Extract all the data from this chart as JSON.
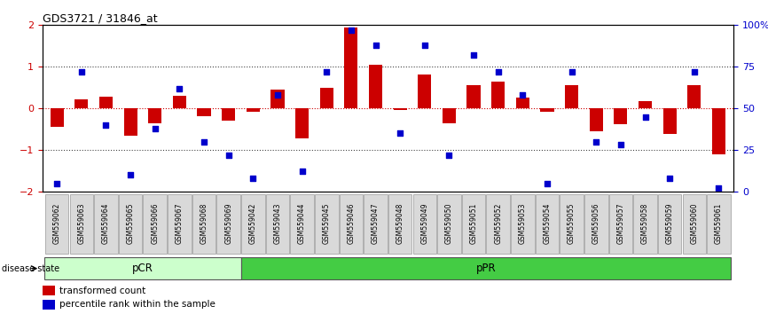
{
  "title": "GDS3721 / 31846_at",
  "samples": [
    "GSM559062",
    "GSM559063",
    "GSM559064",
    "GSM559065",
    "GSM559066",
    "GSM559067",
    "GSM559068",
    "GSM559069",
    "GSM559042",
    "GSM559043",
    "GSM559044",
    "GSM559045",
    "GSM559046",
    "GSM559047",
    "GSM559048",
    "GSM559049",
    "GSM559050",
    "GSM559051",
    "GSM559052",
    "GSM559053",
    "GSM559054",
    "GSM559055",
    "GSM559056",
    "GSM559057",
    "GSM559058",
    "GSM559059",
    "GSM559060",
    "GSM559061"
  ],
  "transformed_count": [
    -0.45,
    0.22,
    0.28,
    -0.65,
    -0.35,
    0.3,
    -0.18,
    -0.3,
    -0.08,
    0.45,
    -0.72,
    0.5,
    1.95,
    1.05,
    -0.05,
    0.82,
    -0.35,
    0.55,
    0.65,
    0.25,
    -0.08,
    0.55,
    -0.55,
    -0.38,
    0.18,
    -0.62,
    0.55,
    -1.1
  ],
  "percentile_rank": [
    5,
    72,
    40,
    10,
    38,
    62,
    30,
    22,
    8,
    58,
    12,
    72,
    97,
    88,
    35,
    88,
    22,
    82,
    72,
    58,
    5,
    72,
    30,
    28,
    45,
    8,
    72,
    2
  ],
  "pcr_count": 8,
  "ppr_count": 20,
  "bar_color": "#cc0000",
  "dot_color": "#0000cc",
  "ylim": [
    -2,
    2
  ],
  "y2lim": [
    0,
    100
  ],
  "y_ticks": [
    -2,
    -1,
    0,
    1,
    2
  ],
  "y2_ticks": [
    0,
    25,
    50,
    75,
    100
  ],
  "hline_color": "#cc0000",
  "dotted_line_color": "#444444",
  "pcr_color": "#ccffcc",
  "ppr_color": "#44cc44",
  "label_bar": "transformed count",
  "label_dot": "percentile rank within the sample",
  "disease_state_label": "disease state",
  "pcr_label": "pCR",
  "ppr_label": "pPR",
  "tick_label_color_left": "#cc0000",
  "tick_label_color_right": "#0000cc",
  "xtick_bg_color": "#d9d9d9",
  "xtick_edge_color": "#999999"
}
